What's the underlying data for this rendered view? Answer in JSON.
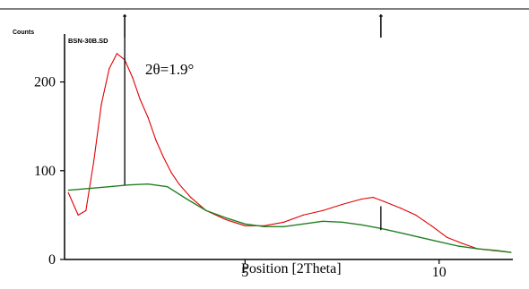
{
  "chart_data": {
    "type": "line",
    "ylabel": "Counts",
    "xlabel": "Position [2Theta]",
    "sample_name": "BSN-30B.SD",
    "annotation": "2θ=1.9°",
    "xlim": [
      0.35,
      11.9
    ],
    "ylim": [
      0,
      250
    ],
    "y_ticks": [
      0,
      100,
      200
    ],
    "x_ticks": [
      5,
      10
    ],
    "x_tick_labels": [
      "5",
      "10"
    ],
    "colors": {
      "measured": "#e00000",
      "background": "#208020",
      "axes": "#000000"
    },
    "peak_markers": [
      {
        "x": 1.9,
        "y_from": 84,
        "y_to": 250
      },
      {
        "x": 8.5,
        "y_from": 33,
        "y_to": 60
      }
    ],
    "top_ticks": [
      1.9,
      8.5
    ],
    "series": [
      {
        "role": "measured",
        "x": [
          0.45,
          0.7,
          0.9,
          1.1,
          1.3,
          1.5,
          1.7,
          1.9,
          2.1,
          2.3,
          2.5,
          2.7,
          2.9,
          3.1,
          3.3,
          3.6,
          4.0,
          4.5,
          5.0,
          5.5,
          6.0,
          6.5,
          7.0,
          7.5,
          8.0,
          8.3,
          8.6,
          9.0,
          9.4,
          9.8,
          10.2,
          10.6,
          11.0,
          11.4,
          11.85
        ],
        "y": [
          75,
          50,
          55,
          110,
          175,
          215,
          232,
          225,
          205,
          180,
          160,
          135,
          115,
          98,
          85,
          70,
          55,
          45,
          38,
          38,
          42,
          50,
          55,
          62,
          68,
          70,
          65,
          58,
          50,
          38,
          25,
          18,
          12,
          10,
          8
        ]
      },
      {
        "role": "background",
        "x": [
          0.45,
          1.0,
          1.5,
          2.0,
          2.5,
          3.0,
          3.5,
          4.0,
          4.5,
          5.0,
          5.5,
          6.0,
          6.5,
          7.0,
          7.5,
          8.0,
          8.5,
          9.0,
          9.5,
          10.0,
          10.5,
          11.0,
          11.5,
          11.85
        ],
        "y": [
          78,
          80,
          82,
          84,
          85,
          82,
          68,
          55,
          47,
          40,
          37,
          37,
          40,
          43,
          42,
          39,
          35,
          30,
          25,
          20,
          15,
          12,
          10,
          8
        ]
      }
    ]
  }
}
